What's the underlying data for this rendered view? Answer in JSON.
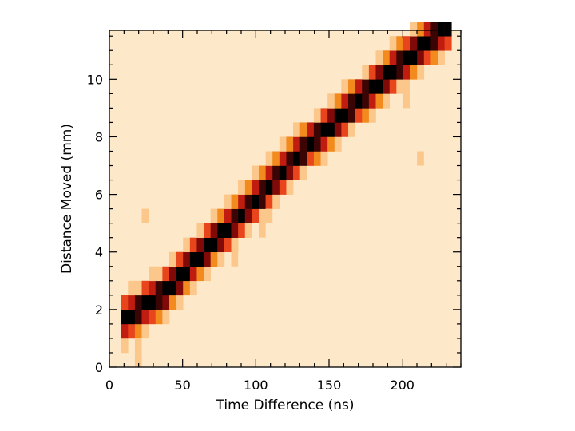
{
  "chart_data": {
    "type": "heatmap",
    "title": "",
    "xlabel": "Time Difference (ns)",
    "ylabel": "Distance Moved (mm)",
    "xlim": [
      0,
      240
    ],
    "ylim": [
      0,
      11.7
    ],
    "x_ticks": [
      "0",
      "50",
      "100",
      "150",
      "200"
    ],
    "y_ticks": [
      "0",
      "2",
      "4",
      "6",
      "8",
      "10"
    ],
    "x_tick_values": [
      0,
      50,
      100,
      150,
      200
    ],
    "y_tick_values": [
      0,
      2,
      4,
      6,
      8,
      10
    ],
    "bin": {
      "dx": 4.7,
      "dy": 0.5
    },
    "grid": false,
    "colormap": [
      "#fde9c9",
      "#fcc78a",
      "#f28a1e",
      "#e8451c",
      "#c01c10",
      "#800a08",
      "#3a0504",
      "#000000"
    ],
    "background_level": 0,
    "ridge": [
      {
        "x": 20,
        "y": 2.0
      },
      {
        "x": 40,
        "y": 2.7
      },
      {
        "x": 60,
        "y": 3.8
      },
      {
        "x": 80,
        "y": 4.8
      },
      {
        "x": 100,
        "y": 5.8
      },
      {
        "x": 120,
        "y": 6.9
      },
      {
        "x": 140,
        "y": 7.9
      },
      {
        "x": 160,
        "y": 8.8
      },
      {
        "x": 180,
        "y": 9.7
      },
      {
        "x": 200,
        "y": 10.6
      },
      {
        "x": 215,
        "y": 11.2
      }
    ],
    "ridge_width": 1.1,
    "ridge_peak_level": 7,
    "extra_cells": [
      {
        "x": 22,
        "y": 0.25,
        "level": 1
      },
      {
        "x": 22,
        "y": 0.75,
        "level": 1
      },
      {
        "x": 26,
        "y": 5.0,
        "level": 1
      },
      {
        "x": 90,
        "y": 6.0,
        "level": 1
      },
      {
        "x": 85,
        "y": 3.5,
        "level": 1
      },
      {
        "x": 103,
        "y": 4.5,
        "level": 1
      },
      {
        "x": 110,
        "y": 5.0,
        "level": 1
      },
      {
        "x": 214,
        "y": 7.0,
        "level": 1
      },
      {
        "x": 205,
        "y": 9.0,
        "level": 1
      }
    ]
  }
}
